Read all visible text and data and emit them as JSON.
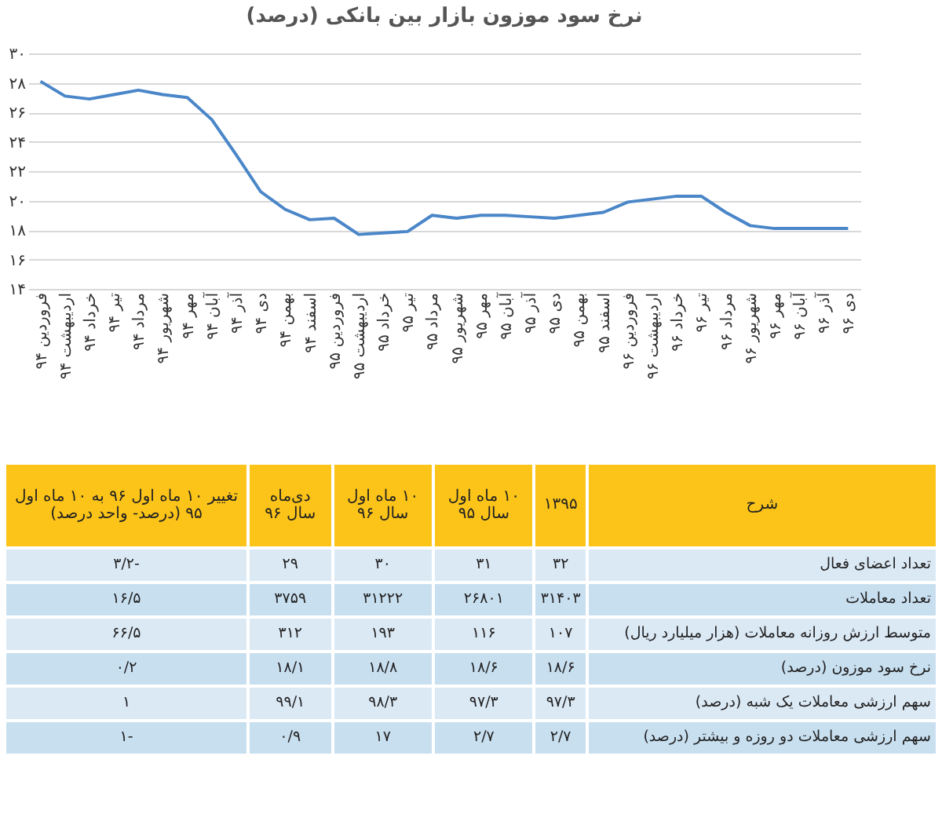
{
  "chart_data": [
    {
      "type": "line",
      "title": "نرخ سود موزون بازار بین بانکی (درصد)",
      "categories": [
        "فروردین ۹۴",
        "اردیبهشت ۹۴",
        "خرداد ۹۴",
        "تیر ۹۴",
        "مرداد ۹۴",
        "شهریور ۹۴",
        "مهر ۹۴",
        "آبان ۹۴",
        "آذر ۹۴",
        "دی ۹۴",
        "بهمن ۹۴",
        "اسفند ۹۴",
        "فروردین ۹۵",
        "اردیبهشت ۹۵",
        "خرداد ۹۵",
        "تیر ۹۵",
        "مرداد ۹۵",
        "شهریور ۹۵",
        "مهر ۹۵",
        "آبان ۹۵",
        "آذر ۹۵",
        "دی ۹۵",
        "بهمن ۹۵",
        "اسفند ۹۵",
        "فروردین ۹۶",
        "اردیبهشت ۹۶",
        "خرداد ۹۶",
        "تیر ۹۶",
        "مرداد ۹۶",
        "شهریور ۹۶",
        "مهر ۹۶",
        "آبان ۹۶",
        "آذر ۹۶",
        "دی ۹۶"
      ],
      "series": [
        {
          "color": "#4a86c8",
          "values": [
            28.1,
            27.1,
            26.9,
            27.2,
            27.5,
            27.2,
            27.0,
            25.5,
            23.1,
            20.6,
            19.4,
            18.7,
            18.8,
            17.7,
            17.8,
            17.9,
            19.0,
            18.8,
            19.0,
            19.0,
            18.9,
            18.8,
            19.0,
            19.2,
            19.9,
            20.1,
            20.3,
            20.3,
            19.2,
            18.3,
            18.1,
            18.1,
            18.1,
            18.1
          ]
        }
      ],
      "ylim": [
        14,
        30
      ],
      "yticks": [
        {
          "value": 14,
          "label": "۱۴"
        },
        {
          "value": 16,
          "label": "۱۶"
        },
        {
          "value": 18,
          "label": "۱۸"
        },
        {
          "value": 20,
          "label": "۲۰"
        },
        {
          "value": 22,
          "label": "۲۲"
        },
        {
          "value": 24,
          "label": "۲۴"
        },
        {
          "value": 26,
          "label": "۲۶"
        },
        {
          "value": 28,
          "label": "۲۸"
        },
        {
          "value": 30,
          "label": "۳۰"
        }
      ],
      "grid": "y"
    },
    {
      "type": "other",
      "annotations": [
        "شرح",
        "۱۳۹۵",
        "۱۰ ماه اول سال ۹۵",
        "۱۰ ماه اول سال ۹۶",
        "دی‌ماه سال ۹۶",
        "تغییر ۱۰ ماه اول ۹۶ به ۱۰ ماه اول ۹۵ (درصد- واحد درصد)",
        "تعداد اعضای فعال",
        "۳۲",
        "۳۱",
        "۳۰",
        "۲۹",
        "۳/۲-",
        "تعداد معاملات",
        "۳۱۴۰۳",
        "۲۶۸۰۱",
        "۳۱۲۲۲",
        "۳۷۵۹",
        "۱۶/۵",
        "متوسط ارزش روزانه معاملات (هزار میلیارد ریال)",
        "۱۰۷",
        "۱۱۶",
        "۱۹۳",
        "۳۱۲",
        "۶۶/۵",
        "نرخ سود موزون (درصد)",
        "۱۸/۶",
        "۱۸/۶",
        "۱۸/۸",
        "۱۸/۱",
        "۰/۲",
        "سهم ارزشی معاملات یک شبه (درصد)",
        "۹۷/۳",
        "۹۷/۳",
        "۹۸/۳",
        "۹۹/۱",
        "۱",
        "سهم ارزشی معاملات دو روزه و بیشتر (درصد)",
        "۲/۷",
        "۲/۷",
        "۱۷",
        "۰/۹",
        "۱-"
      ]
    }
  ]
}
